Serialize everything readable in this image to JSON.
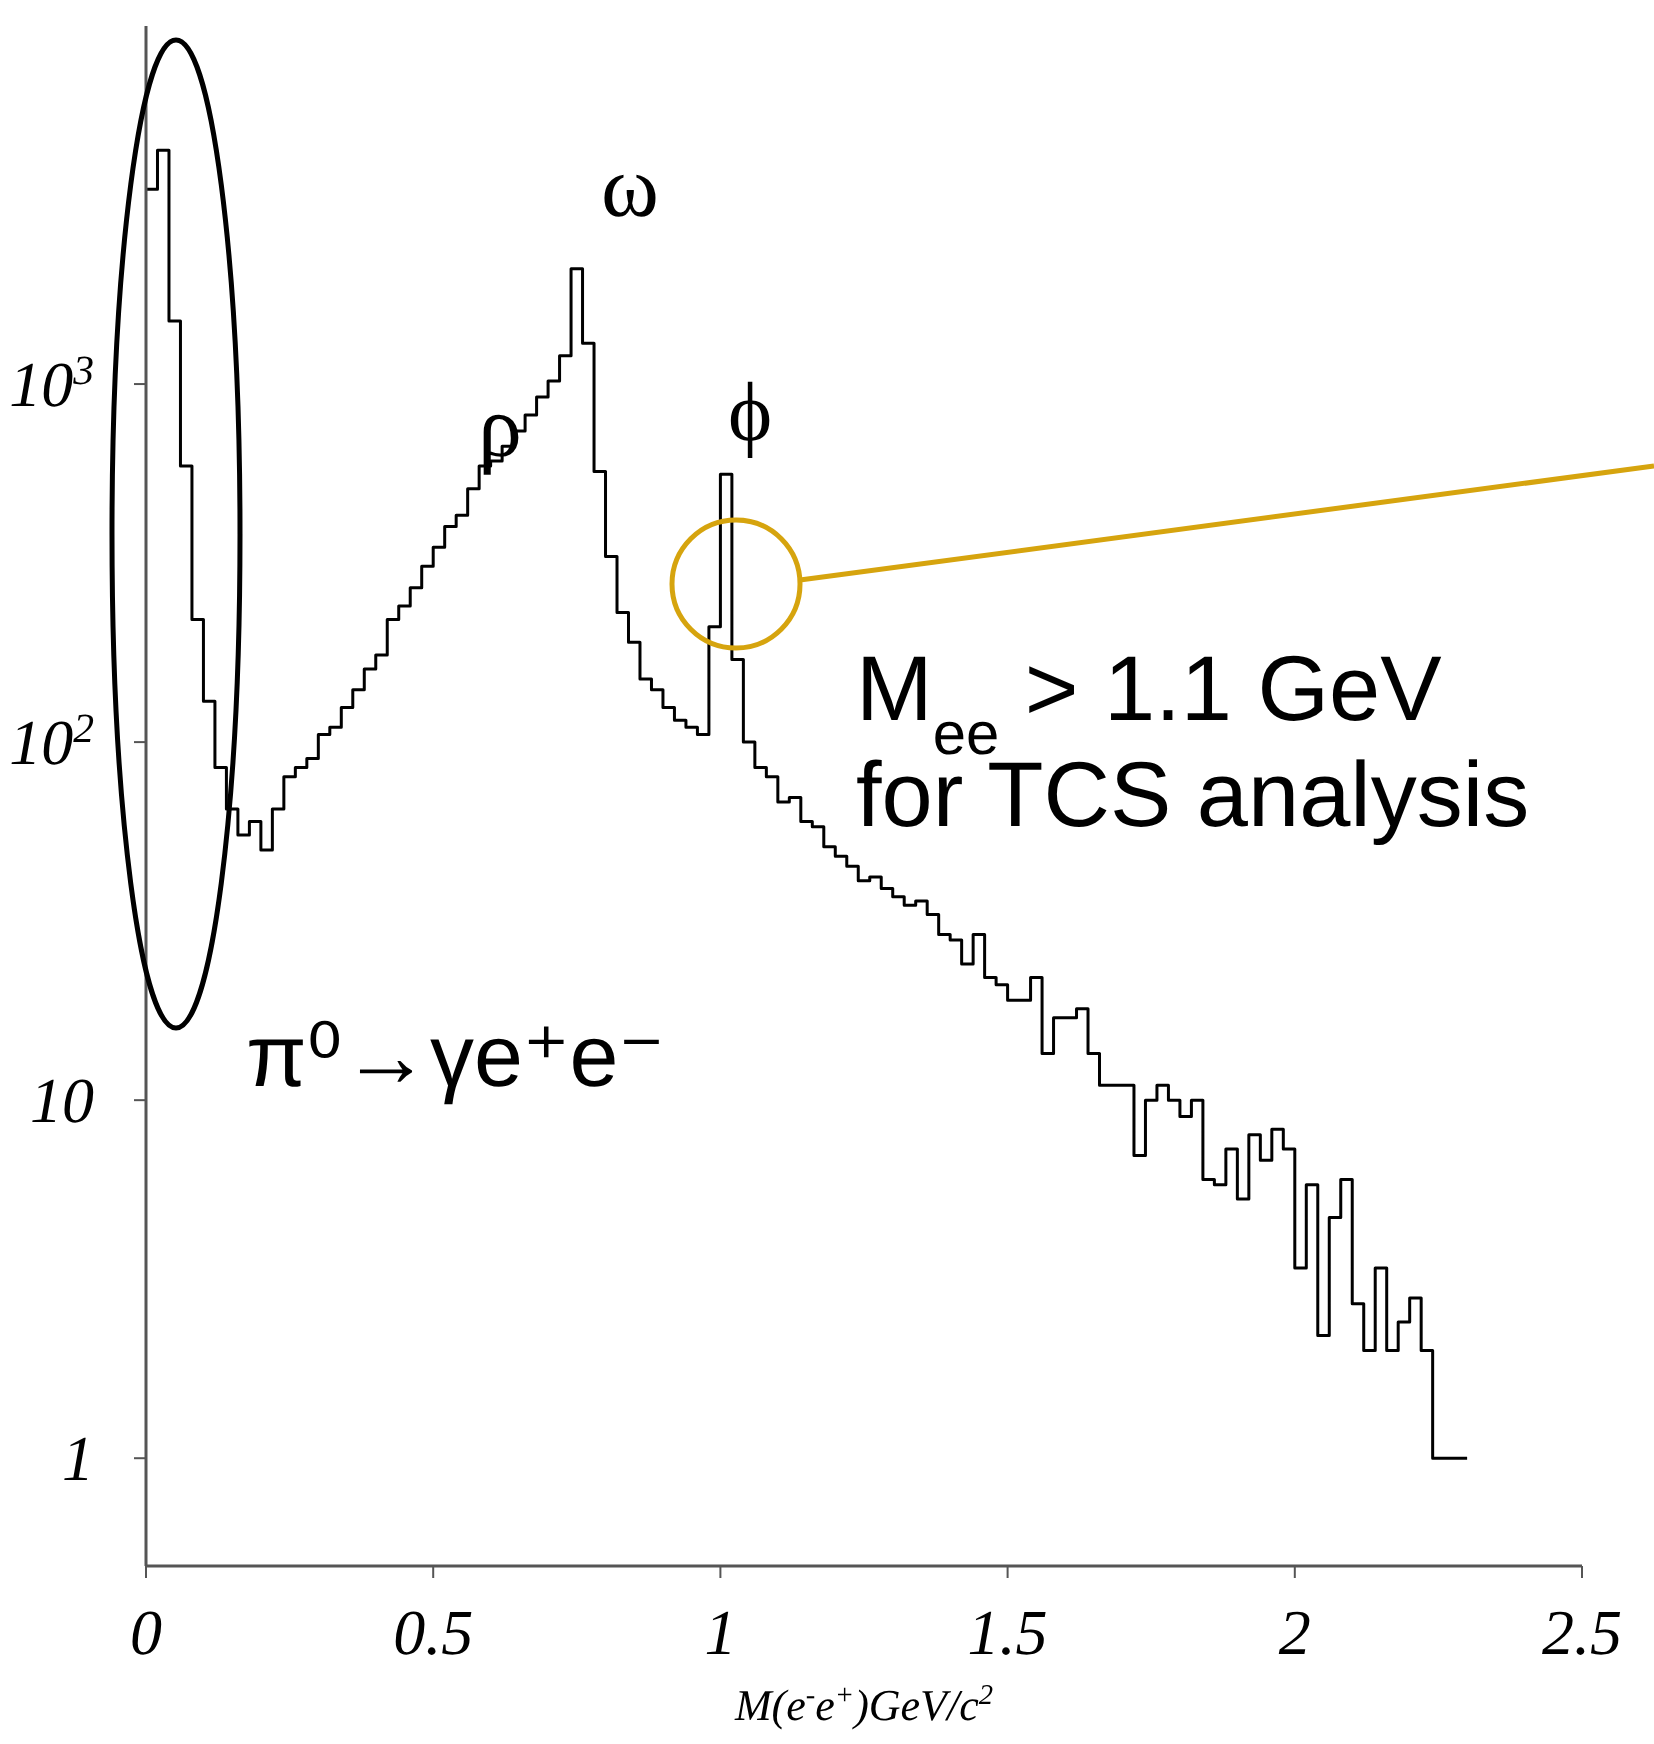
{
  "chart_data": {
    "type": "histogram",
    "xlabel": "M(e$^{-}$e$^{+}$)GeV/c$^{2}$",
    "bins": [
      0,
      0.02,
      0.04,
      0.06,
      0.08,
      0.1,
      0.12,
      0.14,
      0.16,
      0.18,
      0.2,
      0.22,
      0.24,
      0.26,
      0.28,
      0.3,
      0.32,
      0.34,
      0.36,
      0.38,
      0.4,
      0.42,
      0.44,
      0.46,
      0.48,
      0.5,
      0.52,
      0.54,
      0.56,
      0.58,
      0.6,
      0.62,
      0.64,
      0.66,
      0.68,
      0.7,
      0.72,
      0.74,
      0.76,
      0.78,
      0.8,
      0.82,
      0.84,
      0.86,
      0.88,
      0.9,
      0.92,
      0.94,
      0.96,
      0.98,
      1,
      1.02,
      1.04,
      1.06,
      1.08,
      1.1,
      1.12,
      1.14,
      1.16,
      1.18,
      1.2,
      1.22,
      1.24,
      1.26,
      1.28,
      1.3,
      1.32,
      1.34,
      1.36,
      1.38,
      1.4,
      1.42,
      1.44,
      1.46,
      1.48,
      1.5,
      1.52,
      1.54,
      1.56,
      1.58,
      1.6,
      1.62,
      1.64,
      1.66,
      1.68,
      1.7,
      1.72,
      1.74,
      1.76,
      1.78,
      1.8,
      1.82,
      1.84,
      1.86,
      1.88,
      1.9,
      1.92,
      1.94,
      1.96,
      1.98,
      2,
      2.02,
      2.04,
      2.06,
      2.08,
      2.1,
      2.12,
      2.14,
      2.16,
      2.18,
      2.2,
      2.22,
      2.24,
      2.26,
      2.28,
      2.3
    ],
    "values": [
      3500,
      4500,
      1500,
      590,
      220,
      130,
      85,
      65,
      55,
      60,
      50,
      65,
      80,
      85,
      90,
      105,
      110,
      125,
      140,
      160,
      175,
      220,
      240,
      270,
      310,
      350,
      400,
      430,
      510,
      590,
      610,
      670,
      740,
      820,
      920,
      1020,
      1200,
      2100,
      1300,
      570,
      330,
      230,
      190,
      150,
      140,
      125,
      115,
      110,
      105,
      210,
      560,
      170,
      100,
      85,
      80,
      68,
      70,
      60,
      58,
      51,
      48,
      45,
      41,
      42,
      39,
      37,
      35,
      36,
      33,
      29,
      28,
      24,
      29,
      22,
      21,
      19,
      19,
      22,
      13.5,
      17,
      17,
      18,
      13.5,
      11,
      11,
      11,
      7,
      10,
      11,
      10,
      9,
      10,
      6,
      5.8,
      7.3,
      5.3,
      8,
      6.8,
      8.3,
      7.3,
      3.4,
      5.8,
      2.2,
      4.7,
      6,
      2.7,
      2,
      3.4,
      2,
      2.4,
      2.8,
      2,
      1,
      1,
      1
    ],
    "color": "#000000",
    "xlim": [
      0,
      2.5
    ],
    "ylim": [
      0.5,
      10000
    ],
    "log": "y",
    "xticks": [
      0,
      0.5,
      1,
      1.5,
      2,
      2.5
    ],
    "yticks": [
      1,
      10,
      {
        "value": 100,
        "label": "10$^{2}$"
      },
      {
        "value": 1000,
        "label": "10$^{3}$"
      }
    ],
    "annotations": [
      "ρ",
      "ω",
      "ϕ",
      "M$_{ee}$ > 1.1 GeV\nfor TCS analysis",
      "π⁰→γe⁺e⁻"
    ]
  }
}
